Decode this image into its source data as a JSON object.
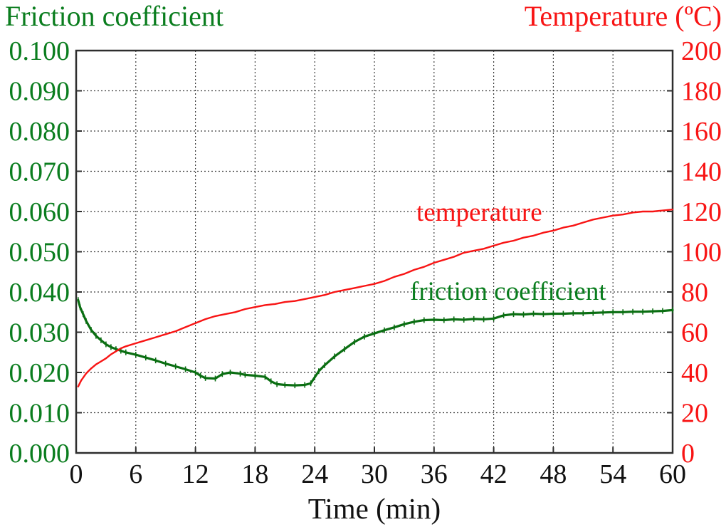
{
  "titles": {
    "left_axis": "Friction coefficient",
    "right_axis": "Temperature (ºC)",
    "x_axis": "Time (min)"
  },
  "annotations": {
    "temperature_label": "temperature",
    "friction_label": "friction coefficient"
  },
  "colors": {
    "friction_green_text": "#0a7d1e",
    "friction_green_line": "#0a6e12",
    "temperature_red": "#f81414",
    "axis_black": "#111111",
    "grid": "#3d3d3d",
    "border": "#2e2e2e"
  },
  "chart_data": {
    "type": "line",
    "title": "",
    "xlabel": "Time (min)",
    "ylabel_left": "Friction coefficient",
    "ylabel_right": "Temperature (ºC)",
    "grid": true,
    "legend_position": "in-plot text annotations",
    "x_range": [
      0,
      60
    ],
    "x_ticks": [
      "0",
      "6",
      "12",
      "18",
      "24",
      "30",
      "36",
      "42",
      "48",
      "54",
      "60"
    ],
    "left_axis": {
      "range": [
        0,
        0.1
      ],
      "ticks_top_to_bottom": [
        "0.100",
        "0.090",
        "0.080",
        "0.070",
        "0.060",
        "0.050",
        "0.040",
        "0.030",
        "0.020",
        "0.010",
        "0.000"
      ]
    },
    "right_axis": {
      "range": [
        0,
        200
      ],
      "ticks_top_to_bottom": [
        "200",
        "180",
        "160",
        "140",
        "120",
        "100",
        "80",
        "60",
        "40",
        "20",
        "0"
      ]
    },
    "series": [
      {
        "name": "friction coefficient",
        "axis": "left",
        "color": "#0a6e12",
        "noise_ticks": true,
        "points": [
          [
            0.2,
            0.038
          ],
          [
            0.4,
            0.0362
          ],
          [
            0.7,
            0.0345
          ],
          [
            1,
            0.0328
          ],
          [
            1.5,
            0.0306
          ],
          [
            2,
            0.0291
          ],
          [
            2.5,
            0.028
          ],
          [
            3,
            0.027
          ],
          [
            3.5,
            0.0263
          ],
          [
            4,
            0.0258
          ],
          [
            4.5,
            0.0254
          ],
          [
            5,
            0.025
          ],
          [
            6,
            0.0244
          ],
          [
            7,
            0.0237
          ],
          [
            8,
            0.023
          ],
          [
            9,
            0.0222
          ],
          [
            10,
            0.0215
          ],
          [
            11,
            0.0208
          ],
          [
            12,
            0.02
          ],
          [
            12.5,
            0.0192
          ],
          [
            13,
            0.0186
          ],
          [
            14,
            0.0185
          ],
          [
            14.7,
            0.0196
          ],
          [
            15.5,
            0.02
          ],
          [
            16.5,
            0.0197
          ],
          [
            17,
            0.0194
          ],
          [
            18,
            0.0192
          ],
          [
            19,
            0.0189
          ],
          [
            19.6,
            0.0178
          ],
          [
            20.2,
            0.0171
          ],
          [
            21,
            0.0169
          ],
          [
            22,
            0.0168
          ],
          [
            23,
            0.0169
          ],
          [
            23.6,
            0.0173
          ],
          [
            24,
            0.0188
          ],
          [
            24.4,
            0.0203
          ],
          [
            25,
            0.0218
          ],
          [
            26,
            0.024
          ],
          [
            27,
            0.0258
          ],
          [
            28,
            0.0276
          ],
          [
            29,
            0.0289
          ],
          [
            30,
            0.0297
          ],
          [
            31,
            0.0305
          ],
          [
            32,
            0.0312
          ],
          [
            33,
            0.032
          ],
          [
            34,
            0.0326
          ],
          [
            35,
            0.033
          ],
          [
            36,
            0.0331
          ],
          [
            37,
            0.033
          ],
          [
            38,
            0.0332
          ],
          [
            39,
            0.0331
          ],
          [
            40,
            0.0333
          ],
          [
            41,
            0.0332
          ],
          [
            42,
            0.0334
          ],
          [
            43,
            0.0342
          ],
          [
            44,
            0.0345
          ],
          [
            45,
            0.0344
          ],
          [
            46,
            0.0346
          ],
          [
            47,
            0.0345
          ],
          [
            48,
            0.0346
          ],
          [
            49,
            0.0346
          ],
          [
            50,
            0.0347
          ],
          [
            51,
            0.0347
          ],
          [
            52,
            0.0348
          ],
          [
            53,
            0.0349
          ],
          [
            54,
            0.035
          ],
          [
            55,
            0.035
          ],
          [
            56,
            0.0351
          ],
          [
            57,
            0.0351
          ],
          [
            58,
            0.0352
          ],
          [
            59,
            0.0353
          ],
          [
            60,
            0.0355
          ]
        ]
      },
      {
        "name": "temperature",
        "axis": "right",
        "color": "#f81414",
        "noise_ticks": false,
        "points": [
          [
            0.2,
            33
          ],
          [
            0.5,
            36
          ],
          [
            1,
            39.5
          ],
          [
            1.5,
            42
          ],
          [
            2,
            44
          ],
          [
            2.5,
            45.5
          ],
          [
            3,
            47
          ],
          [
            3.5,
            49
          ],
          [
            4,
            50.5
          ],
          [
            4.5,
            52
          ],
          [
            5,
            53
          ],
          [
            6,
            54.5
          ],
          [
            7,
            56
          ],
          [
            8,
            57.5
          ],
          [
            9,
            59
          ],
          [
            10,
            60.5
          ],
          [
            11,
            62.5
          ],
          [
            12,
            64.5
          ],
          [
            13,
            66.5
          ],
          [
            14,
            68
          ],
          [
            15,
            69
          ],
          [
            16,
            70
          ],
          [
            17,
            71.5
          ],
          [
            18,
            72.5
          ],
          [
            19,
            73.5
          ],
          [
            20,
            74
          ],
          [
            21,
            75
          ],
          [
            22,
            75.5
          ],
          [
            23,
            76.5
          ],
          [
            24,
            77.5
          ],
          [
            25,
            78.5
          ],
          [
            26,
            80
          ],
          [
            27,
            81
          ],
          [
            28,
            82
          ],
          [
            29,
            83
          ],
          [
            30,
            84
          ],
          [
            31,
            85.5
          ],
          [
            32,
            87.5
          ],
          [
            33,
            89
          ],
          [
            34,
            91
          ],
          [
            35,
            92.5
          ],
          [
            36,
            94.5
          ],
          [
            37,
            96
          ],
          [
            38,
            97.5
          ],
          [
            39,
            99.5
          ],
          [
            40,
            100.5
          ],
          [
            41,
            101.5
          ],
          [
            42,
            103
          ],
          [
            43,
            104.5
          ],
          [
            44,
            105.5
          ],
          [
            45,
            107
          ],
          [
            46,
            108
          ],
          [
            47,
            109.5
          ],
          [
            48,
            110.5
          ],
          [
            49,
            112
          ],
          [
            50,
            113
          ],
          [
            51,
            114.5
          ],
          [
            52,
            116
          ],
          [
            53,
            117
          ],
          [
            54,
            118
          ],
          [
            55,
            118.5
          ],
          [
            56,
            119.5
          ],
          [
            57,
            120
          ],
          [
            58,
            120
          ],
          [
            59,
            120.5
          ],
          [
            60,
            121
          ]
        ]
      }
    ]
  }
}
